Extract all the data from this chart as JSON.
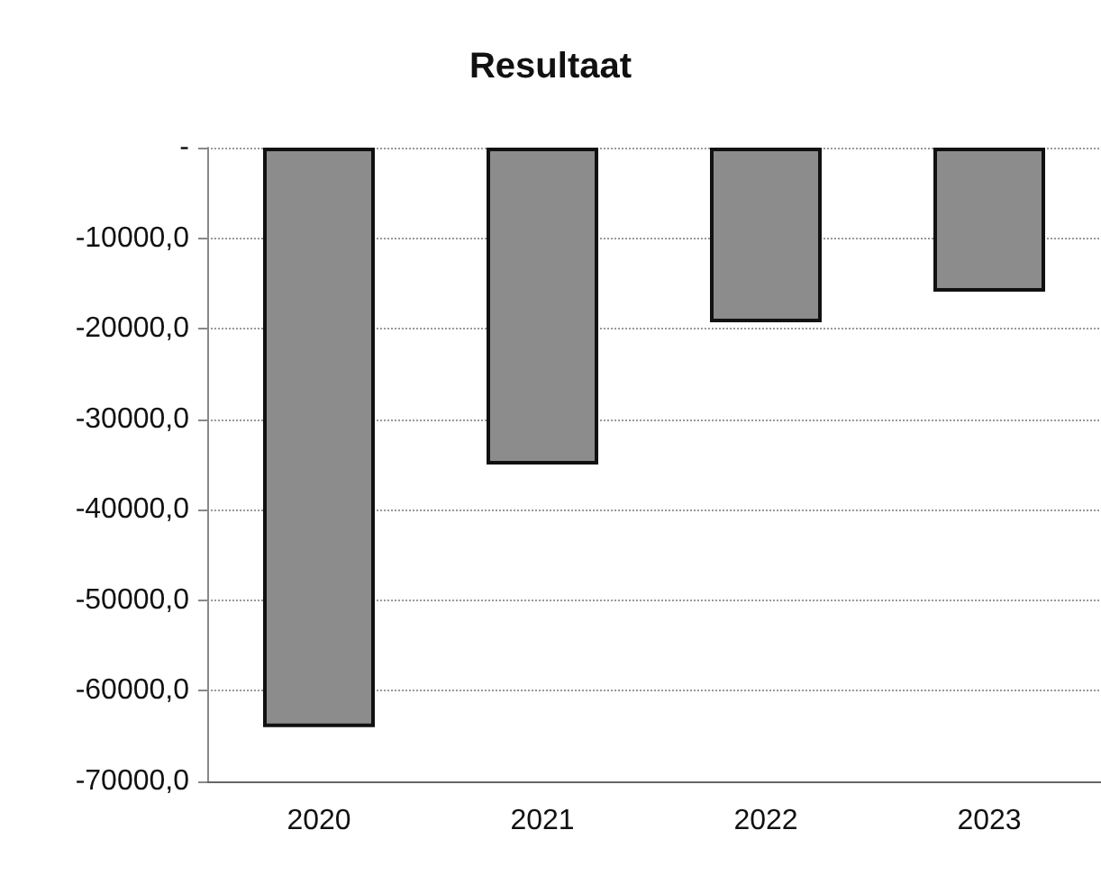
{
  "chart_data": {
    "type": "bar",
    "title": "Resultaat",
    "categories": [
      "2020",
      "2021",
      "2022",
      "2023"
    ],
    "values": [
      -64000,
      -35000,
      -19300,
      -15900
    ],
    "color": "#8c8c8c",
    "ylim": [
      -70000,
      0
    ],
    "yticks": [
      {
        "value": -70000,
        "label": "-70000,0"
      },
      {
        "value": -60000,
        "label": "-60000,0"
      },
      {
        "value": -50000,
        "label": "-50000,0"
      },
      {
        "value": -40000,
        "label": "-40000,0"
      },
      {
        "value": -30000,
        "label": "-30000,0"
      },
      {
        "value": -20000,
        "label": "-20000,0"
      },
      {
        "value": -10000,
        "label": "-10000,0"
      },
      {
        "value": 0,
        "label": "-"
      }
    ],
    "grid": "y"
  }
}
